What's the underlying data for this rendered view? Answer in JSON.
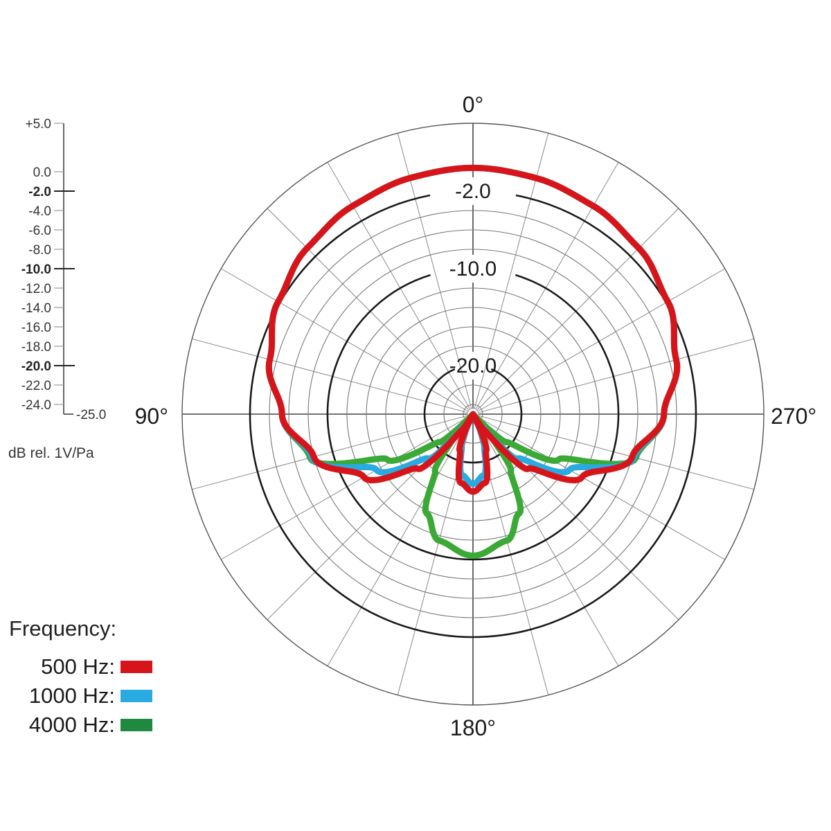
{
  "chart_data": {
    "type": "polar",
    "title": "",
    "unit_label": "dB rel. 1V/Pa",
    "r_range": [
      -25.0,
      5.0
    ],
    "scale_ticks": [
      {
        "value": 5.0,
        "label": "+5.0",
        "bold": false
      },
      {
        "value": 0.0,
        "label": "0.0",
        "bold": false
      },
      {
        "value": -2.0,
        "label": "-2.0",
        "bold": true
      },
      {
        "value": -4.0,
        "label": "-4.0",
        "bold": false
      },
      {
        "value": -6.0,
        "label": "-6.0",
        "bold": false
      },
      {
        "value": -8.0,
        "label": "-8.0",
        "bold": false
      },
      {
        "value": -10.0,
        "label": "-10.0",
        "bold": true
      },
      {
        "value": -12.0,
        "label": "-12.0",
        "bold": false
      },
      {
        "value": -14.0,
        "label": "-14.0",
        "bold": false
      },
      {
        "value": -16.0,
        "label": "-16.0",
        "bold": false
      },
      {
        "value": -18.0,
        "label": "-18.0",
        "bold": false
      },
      {
        "value": -20.0,
        "label": "-20.0",
        "bold": true
      },
      {
        "value": -22.0,
        "label": "-22.0",
        "bold": false
      },
      {
        "value": -24.0,
        "label": "-24.0",
        "bold": false
      },
      {
        "value": -25.0,
        "label": "-25.0",
        "bold": false
      }
    ],
    "ring_labels": [
      {
        "value": -2.0,
        "label": "-2.0"
      },
      {
        "value": -10.0,
        "label": "-10.0"
      },
      {
        "value": -20.0,
        "label": "-20.0"
      }
    ],
    "angle_labels": [
      {
        "angle": 0,
        "label": "0°"
      },
      {
        "angle": 90,
        "label": "90°"
      },
      {
        "angle": 180,
        "label": "180°"
      },
      {
        "angle": 270,
        "label": "270°"
      }
    ],
    "angle_grid_step": 15,
    "ring_grid_step": 2,
    "legend_title": "Frequency:",
    "series": [
      {
        "name": "500 Hz:",
        "color": "#d7141a",
        "legend_color": "#d7141a",
        "angles": [
          0,
          15,
          30,
          45,
          60,
          75,
          90,
          105,
          120,
          135,
          145,
          150,
          160,
          170,
          180
        ],
        "values": [
          0.4,
          0.2,
          -0.2,
          -0.8,
          -1.8,
          -3.3,
          -5.3,
          -8.0,
          -12.0,
          -17.0,
          -23.0,
          -25.0,
          -21.0,
          -17.8,
          -17.0
        ]
      },
      {
        "name": "1000 Hz:",
        "color": "#29abe2",
        "legend_color": "#29abe2",
        "angles": [
          0,
          15,
          30,
          45,
          60,
          75,
          90,
          105,
          120,
          135,
          145,
          152,
          160,
          170,
          180
        ],
        "values": [
          0.4,
          0.2,
          -0.2,
          -0.8,
          -1.8,
          -3.3,
          -5.3,
          -7.8,
          -13.5,
          -18.5,
          -23.5,
          -25.0,
          -21.5,
          -18.6,
          -17.8
        ]
      },
      {
        "name": "4000 Hz:",
        "color": "#3aa935",
        "legend_color": "#1f8a3f",
        "angles": [
          0,
          15,
          30,
          45,
          60,
          75,
          90,
          105,
          118,
          130,
          138,
          146,
          155,
          165,
          180
        ],
        "values": [
          0.4,
          0.2,
          -0.2,
          -0.8,
          -1.8,
          -3.3,
          -5.3,
          -7.6,
          -15.0,
          -20.5,
          -25.0,
          -18.0,
          -13.7,
          -11.5,
          -10.4
        ]
      }
    ]
  }
}
